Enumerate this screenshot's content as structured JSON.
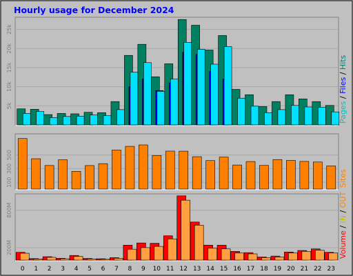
{
  "chart_data": {
    "type": "bar",
    "title": "Hourly usage for December 2024",
    "categories": [
      "0",
      "1",
      "2",
      "3",
      "4",
      "5",
      "6",
      "7",
      "8",
      "9",
      "10",
      "11",
      "12",
      "13",
      "14",
      "15",
      "16",
      "17",
      "18",
      "19",
      "20",
      "21",
      "22",
      "23"
    ],
    "panels": [
      {
        "id": "pages",
        "ylabel_parts": [
          {
            "text": "Pages",
            "color": "#00c0c0"
          },
          {
            "text": " / ",
            "color": "#000000"
          },
          {
            "text": "Files",
            "color": "#0000ff"
          },
          {
            "text": " / ",
            "color": "#000000"
          },
          {
            "text": "Hits",
            "color": "#008080"
          }
        ],
        "ylim": [
          0,
          2800
        ],
        "ticks": [
          {
            "v": 500,
            "label": "5k"
          },
          {
            "v": 1000,
            "label": "10k"
          },
          {
            "v": 1500,
            "label": "15k"
          },
          {
            "v": 2000,
            "label": "20k"
          },
          {
            "v": 2500,
            "label": "25k"
          }
        ],
        "series": [
          {
            "name": "Hits",
            "color": "#008060",
            "offset": -2,
            "width": 12,
            "values": [
              420,
              410,
              270,
              300,
              290,
              330,
              320,
              610,
              1820,
              2110,
              1260,
              1600,
              2760,
              2610,
              1960,
              2340,
              930,
              790,
              480,
              610,
              790,
              680,
              610,
              510
            ]
          },
          {
            "name": "Files",
            "color": "#0000ff",
            "offset": 4,
            "width": 11,
            "values": [
              0,
              0,
              0,
              0,
              0,
              0,
              0,
              0,
              1000,
              1200,
              900,
              1100,
              1900,
              1850,
              1400,
              1200,
              0,
              0,
              0,
              0,
              0,
              0,
              0,
              0
            ]
          },
          {
            "name": "Pages",
            "color": "#00e0ff",
            "offset": 6,
            "width": 11,
            "values": [
              300,
              350,
              190,
              220,
              230,
              260,
              240,
              400,
              1380,
              1630,
              880,
              1200,
              2160,
              1980,
              1590,
              2050,
              700,
              490,
              320,
              400,
              510,
              470,
              460,
              340
            ]
          }
        ]
      },
      {
        "id": "sites",
        "ylabel_parts": [
          {
            "text": "Sites",
            "color": "#ff8000"
          }
        ],
        "ylim": [
          0,
          800
        ],
        "ticks": [
          {
            "v": 100,
            "label": "100"
          },
          {
            "v": 300,
            "label": "300"
          },
          {
            "v": 500,
            "label": "500"
          }
        ],
        "series": [
          {
            "name": "Sites",
            "color": "#ff8000",
            "offset": 0,
            "width": 13,
            "values": [
              742,
              445,
              346,
              430,
              260,
              345,
              373,
              572,
              627,
              648,
              492,
              557,
              556,
              475,
              418,
              469,
              353,
              404,
              347,
              433,
              421,
              406,
              397,
              340
            ]
          }
        ]
      },
      {
        "id": "volume",
        "ylabel_parts": [
          {
            "text": "Volume",
            "color": "#ff0000"
          },
          {
            "text": " / ",
            "color": "#000000"
          },
          {
            "text": "IN",
            "color": "#c0c000"
          },
          {
            "text": " / ",
            "color": "#000000"
          },
          {
            "text": "OUT",
            "color": "#ff8000"
          }
        ],
        "ylim": [
          0,
          1050
        ],
        "ticks": [
          {
            "v": 200,
            "label": "200M"
          },
          {
            "v": 800,
            "label": "800M"
          }
        ],
        "series": [
          {
            "name": "Volume",
            "color": "#ff0000",
            "offset": -3,
            "width": 13,
            "values": [
              125,
              25,
              55,
              30,
              75,
              28,
              22,
              40,
              240,
              275,
              270,
              390,
              1030,
              610,
              240,
              240,
              140,
              120,
              50,
              65,
              130,
              155,
              180,
              125
            ]
          },
          {
            "name": "OUT",
            "color": "#ff9f40",
            "offset": 3,
            "width": 13,
            "values": [
              110,
              18,
              45,
              22,
              60,
              20,
              15,
              30,
              175,
              200,
              220,
              340,
              960,
              560,
              190,
              180,
              115,
              100,
              40,
              50,
              115,
              140,
              160,
              115
            ]
          }
        ]
      }
    ]
  }
}
